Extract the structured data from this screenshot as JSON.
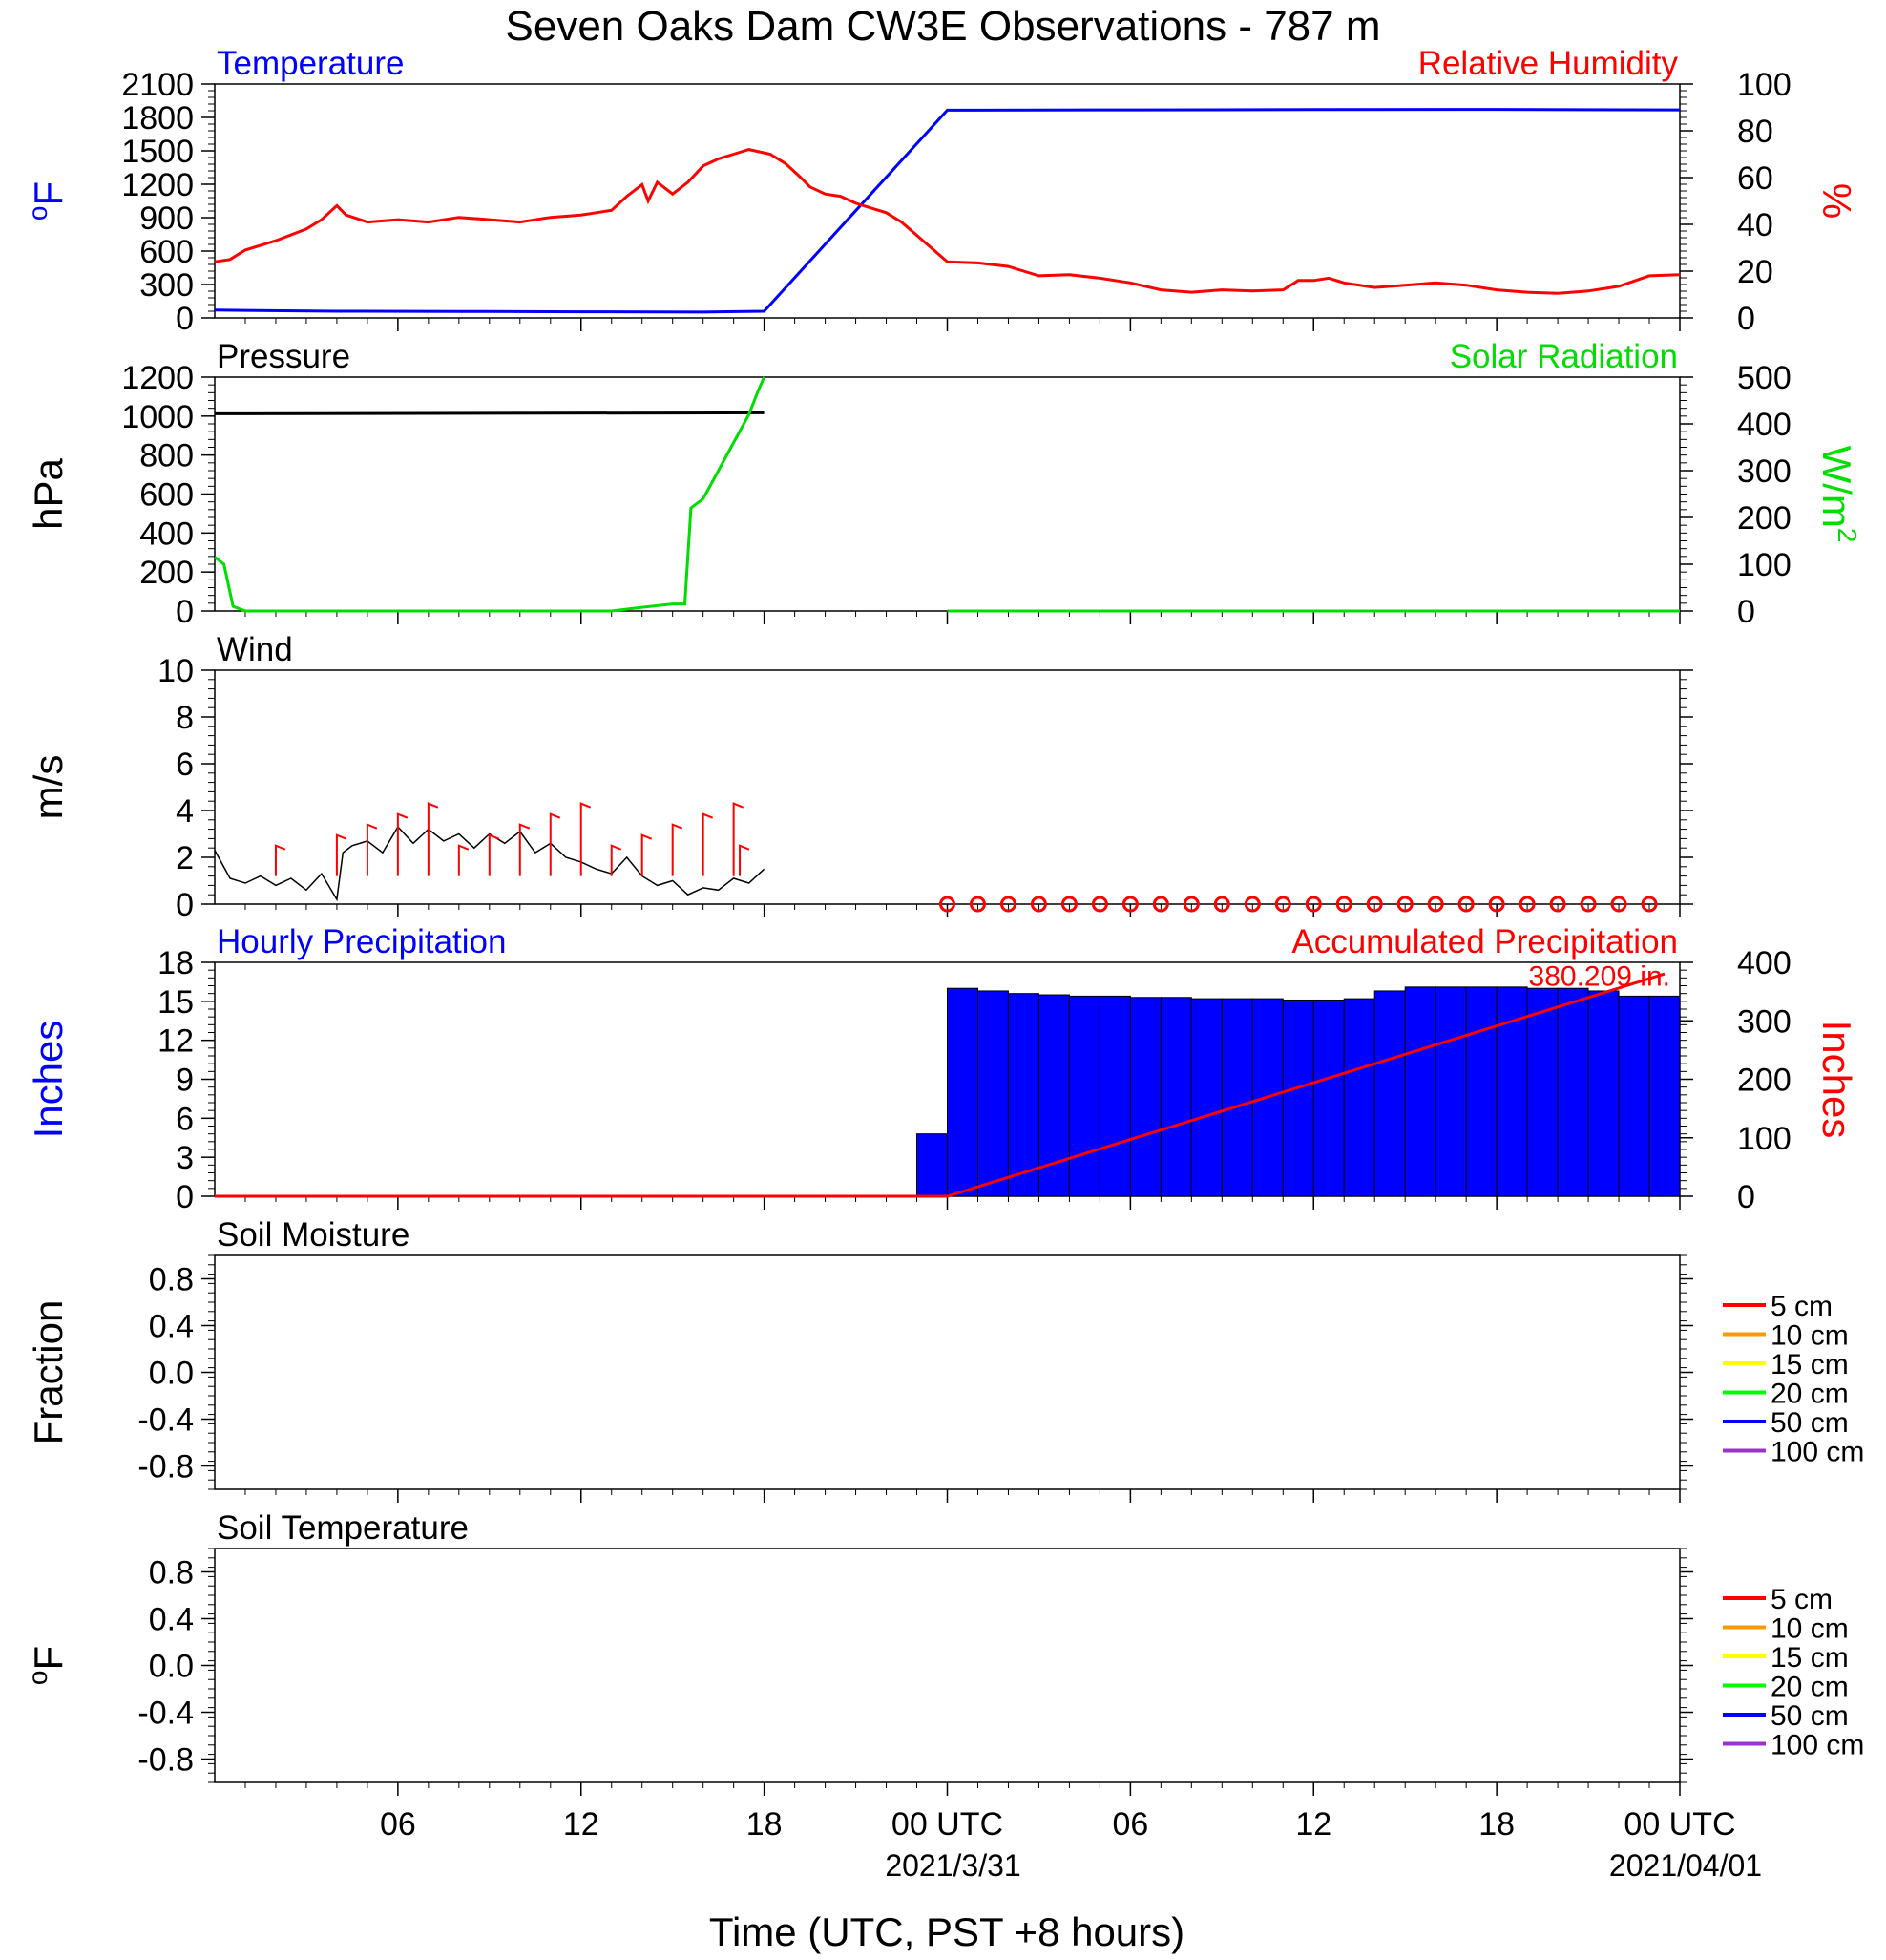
{
  "title": "Seven Oaks Dam CW3E Observations - 787 m",
  "xlabel": "Time (UTC, PST +8 hours)",
  "x_axis": {
    "range_hours": [
      -24,
      24
    ],
    "ticks": [
      {
        "t": -18,
        "label": "06",
        "date": ""
      },
      {
        "t": -12,
        "label": "12",
        "date": ""
      },
      {
        "t": -6,
        "label": "18",
        "date": ""
      },
      {
        "t": 0,
        "label": "00 UTC",
        "date": "2021/3/31"
      },
      {
        "t": 6,
        "label": "06",
        "date": ""
      },
      {
        "t": 12,
        "label": "12",
        "date": ""
      },
      {
        "t": 18,
        "label": "18",
        "date": ""
      },
      {
        "t": 24,
        "label": "00 UTC",
        "date": "2021/04/01"
      }
    ]
  },
  "colors": {
    "blue": "#0000ff",
    "red": "#ff0000",
    "green": "#00dd00",
    "black": "#000000",
    "soil_legend": [
      "#ff0000",
      "#ff9900",
      "#ffff00",
      "#00ff00",
      "#0000ff",
      "#9933cc"
    ]
  },
  "chart_data": [
    {
      "id": "temp_rh",
      "type": "line",
      "left_title": "Temperature",
      "right_title": "Relative Humidity",
      "ylabel_left": "oF",
      "ylabel_right": "%",
      "ylim_left": [
        0,
        2100
      ],
      "ylim_right": [
        0,
        100
      ],
      "yticks_left": [
        0,
        300,
        600,
        900,
        1200,
        1500,
        1800,
        2100
      ],
      "yticks_right": [
        0,
        20,
        40,
        60,
        80,
        100
      ],
      "series": [
        {
          "axis": "left",
          "color": "blue",
          "points": [
            [
              -24,
              70
            ],
            [
              -20,
              60
            ],
            [
              -16,
              58
            ],
            [
              -12,
              55
            ],
            [
              -8,
              52
            ],
            [
              -6,
              60
            ],
            [
              0,
              1865
            ],
            [
              6,
              1868
            ],
            [
              12,
              1870
            ],
            [
              18,
              1872
            ],
            [
              24,
              1868
            ]
          ]
        },
        {
          "axis": "right",
          "color": "red",
          "points": [
            [
              -24,
              24
            ],
            [
              -23.5,
              25
            ],
            [
              -23,
              29
            ],
            [
              -22,
              33
            ],
            [
              -21,
              38
            ],
            [
              -20.5,
              42
            ],
            [
              -20,
              48
            ],
            [
              -19.7,
              44
            ],
            [
              -19,
              41
            ],
            [
              -18,
              42
            ],
            [
              -17,
              41
            ],
            [
              -16,
              43
            ],
            [
              -15,
              42
            ],
            [
              -14,
              41
            ],
            [
              -13,
              43
            ],
            [
              -12,
              44
            ],
            [
              -11.5,
              45
            ],
            [
              -11,
              46
            ],
            [
              -10.5,
              52
            ],
            [
              -10,
              57
            ],
            [
              -9.8,
              50
            ],
            [
              -9.5,
              58
            ],
            [
              -9,
              53
            ],
            [
              -8.5,
              58
            ],
            [
              -8,
              65
            ],
            [
              -7.5,
              68
            ],
            [
              -7,
              70
            ],
            [
              -6.5,
              72
            ],
            [
              -5.8,
              70
            ],
            [
              -5.3,
              66
            ],
            [
              -4.8,
              60
            ],
            [
              -4.5,
              56
            ],
            [
              -4,
              53
            ],
            [
              -3.5,
              52
            ],
            [
              -3,
              49
            ],
            [
              -2.5,
              47
            ],
            [
              -2,
              45
            ],
            [
              -1.5,
              41
            ],
            [
              0,
              24
            ],
            [
              1,
              23.5
            ],
            [
              2,
              22
            ],
            [
              2.5,
              20
            ],
            [
              3,
              18
            ],
            [
              4,
              18.5
            ],
            [
              5,
              17
            ],
            [
              5.5,
              16
            ],
            [
              6,
              15
            ],
            [
              7,
              12
            ],
            [
              8,
              11
            ],
            [
              9,
              12
            ],
            [
              10,
              11.5
            ],
            [
              11,
              12
            ],
            [
              11.5,
              16
            ],
            [
              12,
              16
            ],
            [
              12.5,
              17
            ],
            [
              13,
              15
            ],
            [
              14,
              13
            ],
            [
              15,
              14
            ],
            [
              16,
              15
            ],
            [
              17,
              14
            ],
            [
              18,
              12
            ],
            [
              19,
              11
            ],
            [
              20,
              10.5
            ],
            [
              21,
              11.5
            ],
            [
              22,
              13.5
            ],
            [
              23,
              18
            ],
            [
              24,
              18.5
            ]
          ]
        }
      ]
    },
    {
      "id": "pressure_solar",
      "type": "line",
      "left_title": "Pressure",
      "right_title": "Solar Radiation",
      "ylabel_left": "hPa",
      "ylabel_right": "W/m2",
      "ylim_left": [
        0,
        1200
      ],
      "ylim_right": [
        0,
        500
      ],
      "yticks_left": [
        0,
        200,
        400,
        600,
        800,
        1000,
        1200
      ],
      "yticks_right": [
        0,
        100,
        200,
        300,
        400,
        500
      ],
      "series": [
        {
          "axis": "left",
          "color": "black",
          "points": [
            [
              -24,
              1012
            ],
            [
              -6,
              1017
            ]
          ]
        },
        {
          "axis": "right",
          "color": "green",
          "points": [
            [
              -24,
              115
            ],
            [
              -23.7,
              100
            ],
            [
              -23.4,
              10
            ],
            [
              -23,
              0
            ],
            [
              -11,
              0
            ],
            [
              -10,
              8
            ],
            [
              -9,
              15
            ],
            [
              -8.6,
              15
            ],
            [
              -8.4,
              220
            ],
            [
              -8,
              240
            ],
            [
              -7.5,
              300
            ],
            [
              -7,
              360
            ],
            [
              -6.5,
              420
            ],
            [
              -6.2,
              470
            ],
            [
              -6,
              500
            ]
          ]
        },
        {
          "axis": "right",
          "color": "green",
          "points": [
            [
              0,
              0
            ],
            [
              24,
              0
            ]
          ]
        }
      ]
    },
    {
      "id": "wind",
      "type": "line",
      "left_title": "Wind",
      "right_title": "",
      "ylabel_left": "m/s",
      "ylabel_right": "",
      "ylim_left": [
        0,
        10
      ],
      "yticks_left": [
        0,
        2,
        4,
        6,
        8,
        10
      ],
      "series": [
        {
          "axis": "left",
          "color": "black",
          "points": [
            [
              -24,
              2.3
            ],
            [
              -23.5,
              1.1
            ],
            [
              -23,
              0.9
            ],
            [
              -22.5,
              1.2
            ],
            [
              -22,
              0.8
            ],
            [
              -21.5,
              1.1
            ],
            [
              -21,
              0.6
            ],
            [
              -20.5,
              1.3
            ],
            [
              -20,
              0.2
            ],
            [
              -19.8,
              2.2
            ],
            [
              -19.5,
              2.5
            ],
            [
              -19,
              2.7
            ],
            [
              -18.5,
              2.2
            ],
            [
              -18,
              3.3
            ],
            [
              -17.5,
              2.6
            ],
            [
              -17,
              3.2
            ],
            [
              -16.5,
              2.7
            ],
            [
              -16,
              3.0
            ],
            [
              -15.5,
              2.4
            ],
            [
              -15,
              3.0
            ],
            [
              -14.5,
              2.6
            ],
            [
              -14,
              3.1
            ],
            [
              -13.5,
              2.2
            ],
            [
              -13,
              2.6
            ],
            [
              -12.5,
              2.0
            ],
            [
              -12,
              1.8
            ],
            [
              -11.5,
              1.5
            ],
            [
              -11,
              1.3
            ],
            [
              -10.5,
              2.0
            ],
            [
              -10,
              1.2
            ],
            [
              -9.5,
              0.8
            ],
            [
              -9,
              1.0
            ],
            [
              -8.5,
              0.4
            ],
            [
              -8,
              0.7
            ],
            [
              -7.5,
              0.6
            ],
            [
              -7,
              1.1
            ],
            [
              -6.5,
              0.9
            ],
            [
              -6,
              1.5
            ]
          ]
        }
      ],
      "barbs_t": [
        -22,
        -20,
        -19,
        -18,
        -17,
        -16,
        -15,
        -14,
        -13,
        -12,
        -11,
        -10,
        -9,
        -8,
        -7,
        -6.8
      ],
      "calm_t": [
        0,
        1,
        2,
        3,
        4,
        5,
        6,
        7,
        8,
        9,
        10,
        11,
        12,
        13,
        14,
        15,
        16,
        17,
        18,
        19,
        20,
        21,
        22,
        23
      ]
    },
    {
      "id": "precip",
      "type": "bar",
      "left_title": "Hourly Precipitation",
      "right_title": "Accumulated Precipitation",
      "ylabel_left": "Inches",
      "ylabel_right": "Inches",
      "ylim_left": [
        0,
        18
      ],
      "ylim_right": [
        0,
        400
      ],
      "yticks_left": [
        0,
        3,
        6,
        9,
        12,
        15,
        18
      ],
      "yticks_right": [
        0,
        100,
        200,
        300,
        400
      ],
      "bars_start_hour": -1,
      "hourly": [
        4.8,
        16.0,
        15.8,
        15.6,
        15.5,
        15.4,
        15.4,
        15.3,
        15.3,
        15.2,
        15.2,
        15.2,
        15.1,
        15.1,
        15.2,
        15.8,
        16.1,
        16.1,
        16.1,
        16.1,
        16.0,
        16.0,
        15.8,
        15.4,
        15.4
      ],
      "accumulated_line": [
        [
          -24,
          0
        ],
        [
          -6,
          0
        ],
        [
          0,
          0
        ],
        [
          23.5,
          380.209
        ]
      ],
      "accumulated_total_label": "380.209 in."
    },
    {
      "id": "soil_moisture",
      "type": "line",
      "left_title": "Soil Moisture",
      "ylabel_left": "Fraction",
      "ylim_left": [
        -1,
        1
      ],
      "yticks_left": [
        -0.8,
        -0.4,
        0.0,
        0.4,
        0.8
      ],
      "legend": [
        "5 cm",
        "10 cm",
        "15 cm",
        "20 cm",
        "50 cm",
        "100 cm"
      ],
      "series": []
    },
    {
      "id": "soil_temperature",
      "type": "line",
      "left_title": "Soil Temperature",
      "ylabel_left": "oF",
      "ylim_left": [
        -1,
        1
      ],
      "yticks_left": [
        -0.8,
        -0.4,
        0.0,
        0.4,
        0.8
      ],
      "legend": [
        "5 cm",
        "10 cm",
        "15 cm",
        "20 cm",
        "50 cm",
        "100 cm"
      ],
      "series": []
    }
  ]
}
